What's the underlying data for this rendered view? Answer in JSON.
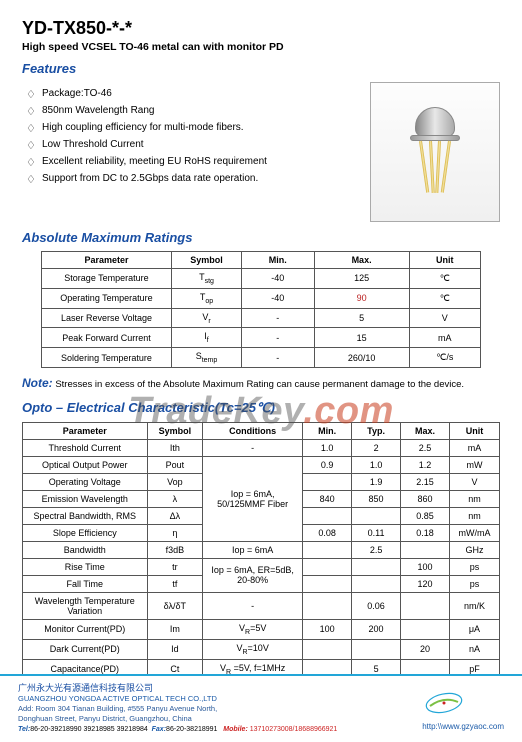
{
  "header": {
    "title": "YD-TX850-*-*",
    "subtitle": "High speed VCSEL TO-46 metal can with monitor PD"
  },
  "sections": {
    "features": "Features",
    "ratings": "Absolute Maximum Ratings",
    "opto": "Opto – Electrical Characteristic(Tc=25℃)"
  },
  "features": [
    "Package:TO-46",
    "850nm Wavelength Rang",
    "High coupling efficiency for multi-mode fibers.",
    "Low Threshold Current",
    "Excellent reliability, meeting EU RoHS requirement",
    "Support from DC to 2.5Gbps data rate operation."
  ],
  "ratings_headers": [
    "Parameter",
    "Symbol",
    "Min.",
    "Max.",
    "Unit"
  ],
  "ratings_rows": [
    {
      "p": "Storage Temperature",
      "s": "Tstg",
      "min": "-40",
      "max": "125",
      "u": "℃"
    },
    {
      "p": "Operating Temperature",
      "s": "Top",
      "min": "-40",
      "max": "90",
      "u": "℃",
      "hl": true
    },
    {
      "p": "Laser Reverse Voltage",
      "s": "Vr",
      "min": "-",
      "max": "5",
      "u": "V"
    },
    {
      "p": "Peak Forward Current",
      "s": "If",
      "min": "-",
      "max": "15",
      "u": "mA"
    },
    {
      "p": "Soldering Temperature",
      "s": "Stemp",
      "min": "-",
      "max": "260/10",
      "u": "℃/s"
    }
  ],
  "note_label": "Note:",
  "note_text": "Stresses in excess of the Absolute Maximum Rating can cause permanent damage to the device.",
  "opto_headers": [
    "Parameter",
    "Symbol",
    "Conditions",
    "Min.",
    "Typ.",
    "Max.",
    "Unit"
  ],
  "opto_rows": [
    {
      "p": "Threshold Current",
      "s": "Ith",
      "c": "-",
      "min": "1.0",
      "typ": "2",
      "max": "2.5",
      "u": "mA"
    },
    {
      "p": "Optical Output Power",
      "s": "Pout",
      "c": "",
      "min": "0.9",
      "typ": "1.0",
      "max": "1.2",
      "u": "mW"
    },
    {
      "p": "Operating Voltage",
      "s": "Vop",
      "c": "",
      "min": "",
      "typ": "1.9",
      "max": "2.15",
      "u": "V"
    },
    {
      "p": "Emission Wavelength",
      "s": "λ",
      "c": "",
      "min": "840",
      "typ": "850",
      "max": "860",
      "u": "nm"
    },
    {
      "p": "Spectral Bandwidth, RMS",
      "s": "Δλ",
      "c": "",
      "min": "",
      "typ": "",
      "max": "0.85",
      "u": "nm"
    },
    {
      "p": "Slope Efficiency",
      "s": "η",
      "c": "",
      "min": "0.08",
      "typ": "0.11",
      "max": "0.18",
      "u": "mW/mA"
    },
    {
      "p": "Bandwidth",
      "s": "f3dB",
      "c": "Iop = 6mA",
      "min": "",
      "typ": "2.5",
      "max": "",
      "u": "GHz"
    },
    {
      "p": "Rise Time",
      "s": "tr",
      "c": "",
      "min": "",
      "typ": "",
      "max": "100",
      "u": "ps"
    },
    {
      "p": "Fall Time",
      "s": "tf",
      "c": "",
      "min": "",
      "typ": "",
      "max": "120",
      "u": "ps"
    },
    {
      "p": "Wavelength Temperature Variation",
      "s": "δλ/δT",
      "c": "-",
      "min": "",
      "typ": "0.06",
      "max": "",
      "u": "nm/K"
    },
    {
      "p": "Monitor Current(PD)",
      "s": "Im",
      "c": "VR=5V",
      "min": "100",
      "typ": "200",
      "max": "",
      "u": "μA"
    },
    {
      "p": "Dark Current(PD)",
      "s": "Id",
      "c": "VR=10V",
      "min": "",
      "typ": "",
      "max": "20",
      "u": "nA"
    },
    {
      "p": "Capacitance(PD)",
      "s": "Ct",
      "c": "VR =5V, f=1MHz",
      "min": "",
      "typ": "5",
      "max": "",
      "u": "pF"
    }
  ],
  "cond_merged1": "Iop = 6mA, 50/125MMF Fiber",
  "cond_merged2": "Iop = 6mA, ER=5dB, 20-80%",
  "watermark": {
    "a": "TradeKey",
    "b": ".com"
  },
  "footer": {
    "cn": "广州永大光有源通信科技有限公司",
    "en": "GUANGZHOU YONGDA ACTIVE OPTICAL TECH CO.,LTD",
    "addr1": "Add: Room 304 Tianan Building, #555 Panyu Avenue North,",
    "addr2": "Donghuan Street, Panyu District, Guangzhou, China",
    "tel_lbl": "Tel:",
    "tel": "86-20-39218990 39218985 39218984",
    "fax_lbl": "Fax:",
    "fax": "86-20-38218991",
    "mob_lbl": "Mobile:",
    "mob": "13710273008/18688966921",
    "url": "http:\\\\www.gzyaoc.com"
  }
}
